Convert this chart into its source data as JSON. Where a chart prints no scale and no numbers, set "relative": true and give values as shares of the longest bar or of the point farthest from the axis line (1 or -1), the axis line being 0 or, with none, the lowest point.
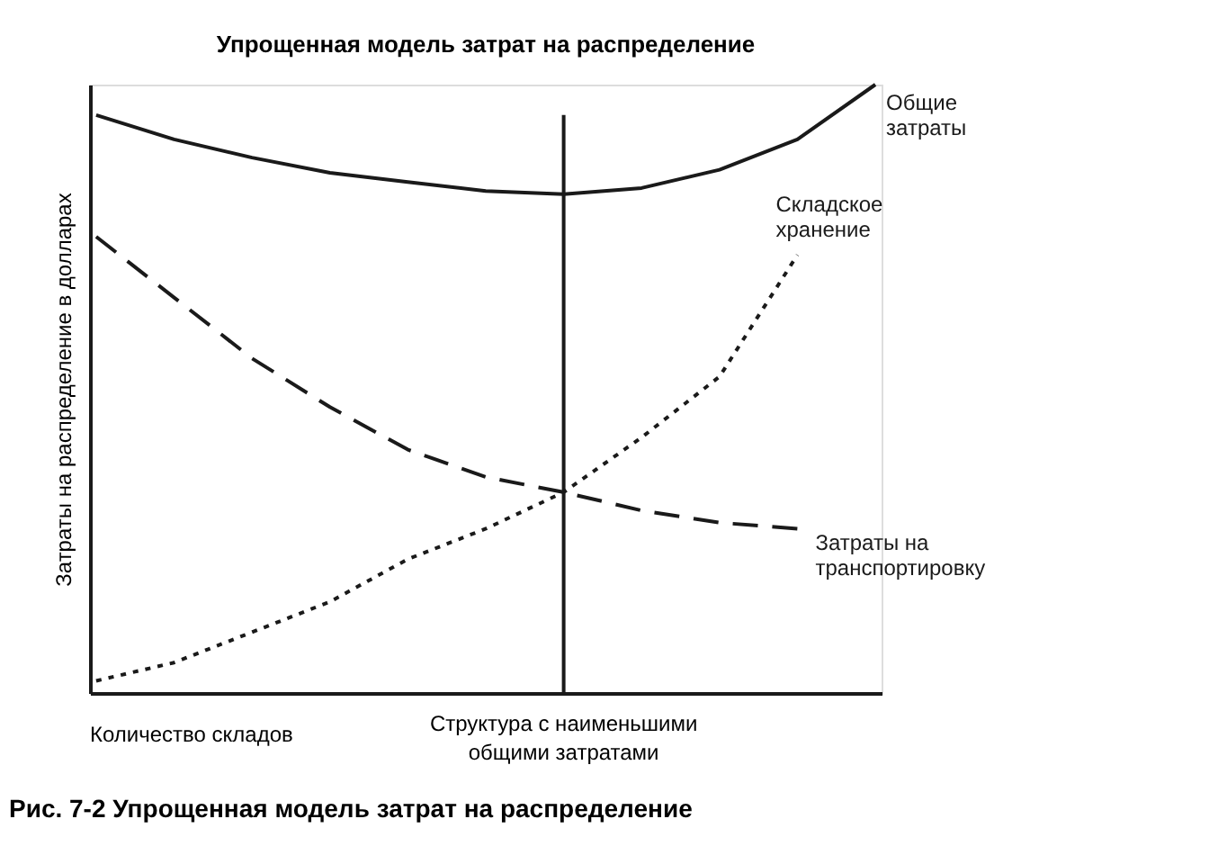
{
  "chart_data": {
    "type": "line",
    "relative": true,
    "title": "Упрощенная модель затрат на распределение",
    "xlabel": "Количество складов",
    "ylabel": "Затраты на распределение в долларах",
    "marker": "none",
    "grid": false,
    "categories": [
      null,
      null,
      null,
      null,
      null,
      null,
      null,
      null,
      null,
      null,
      null
    ],
    "series": [
      {
        "name": "Общие\nзатраты",
        "color": "#1a1a1a",
        "line_style": "solid",
        "values": [
          0.95,
          0.91,
          0.88,
          0.855,
          0.84,
          0.825,
          0.82,
          0.83,
          0.86,
          0.91,
          1.0
        ]
      },
      {
        "name": "Затраты на\nтранспортировку",
        "color": "#1a1a1a",
        "line_style": "dashed",
        "values": [
          0.75,
          0.65,
          0.55,
          0.47,
          0.4,
          0.355,
          0.33,
          0.3,
          0.28,
          0.27,
          null
        ]
      },
      {
        "name": "Складское\nхранение",
        "color": "#1a1a1a",
        "line_style": "dotted",
        "values": [
          0.02,
          0.05,
          0.1,
          0.15,
          0.22,
          0.27,
          0.33,
          0.42,
          0.52,
          0.72,
          null
        ]
      }
    ],
    "annotations": [
      "Структура с наименьшими общими затратами",
      "Рис. 7-2 Упрощенная модель затрат на распределение"
    ]
  }
}
